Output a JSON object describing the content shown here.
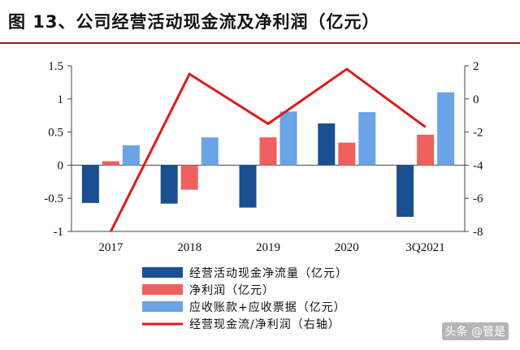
{
  "figure_title": "图 13、公司经营活动现金流及净利润（亿元）",
  "watermark": "头条 @管是",
  "colors": {
    "operating_cf": "#1b4f93",
    "net_profit": "#f0605e",
    "receivables": "#6aa3e6",
    "ratio_line": "#e01a1a",
    "title_rule": "#8a1d1d"
  },
  "chart_data": {
    "type": "bar",
    "categories": [
      "2017",
      "2018",
      "2019",
      "2020",
      "3Q2021"
    ],
    "series": [
      {
        "name": "经营活动现金净流量（亿元）",
        "type": "bar",
        "axis": "left",
        "values": [
          -0.57,
          -0.58,
          -0.64,
          0.63,
          -0.78
        ]
      },
      {
        "name": "净利润（亿元）",
        "type": "bar",
        "axis": "left",
        "values": [
          0.06,
          -0.37,
          0.42,
          0.34,
          0.46
        ]
      },
      {
        "name": "应收账款+应收票据（亿元）",
        "type": "bar",
        "axis": "left",
        "values": [
          0.3,
          0.42,
          0.81,
          0.8,
          1.1
        ]
      },
      {
        "name": "经营现金流/净利润（右轴）",
        "type": "line",
        "axis": "right",
        "values": [
          -8.0,
          1.5,
          -1.5,
          1.8,
          -1.7
        ]
      }
    ],
    "y_left": {
      "min": -1,
      "max": 1.5,
      "ticks": [
        -1,
        -0.5,
        0,
        0.5,
        1,
        1.5
      ]
    },
    "y_right": {
      "min": -8,
      "max": 2,
      "ticks": [
        -8,
        -6,
        -4,
        -2,
        0,
        2
      ]
    },
    "legend_position": "bottom",
    "grid": false
  }
}
